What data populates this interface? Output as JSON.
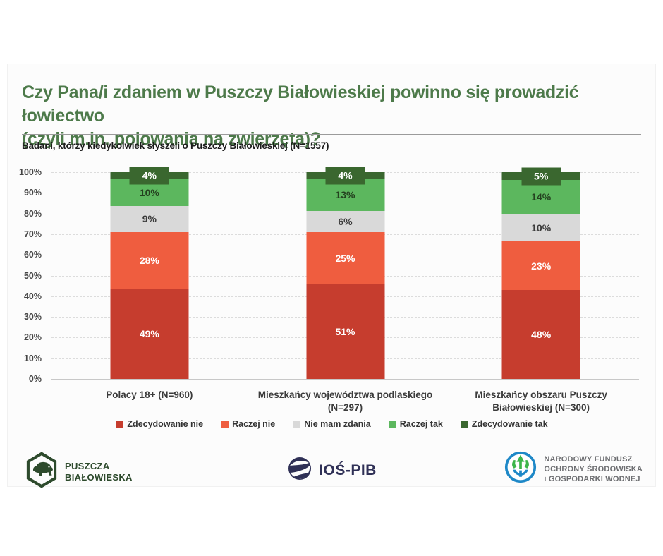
{
  "header": {
    "title_lines": [
      "Czy Pana/i zdaniem w Puszczy Białowieskiej powinno się prowadzić łowiectwo",
      "(czyli m.in. polowania na zwierzęta)?"
    ],
    "subtitle": "Badani, którzy kiedykolwiek słyszeli o Puszczy Białowieskiej (N=1557)",
    "title_color": "#4d7a4a"
  },
  "chart_data": {
    "type": "bar",
    "stacked": true,
    "unit": "%",
    "title": "Czy Pana/i zdaniem w Puszczy Białowieskiej powinno się prowadzić łowiectwo (czyli m.in. polowania na zwierzęta)?",
    "subtitle": "Badani, którzy kiedykolwiek słyszeli o Puszczy Białowieskiej (N=1557)",
    "categories": [
      "Polacy 18+ (N=960)",
      "Mieszkańcy województwa podlaskiego (N=297)",
      "Mieszkańcy obszaru Puszczy Białowieskiej (N=300)"
    ],
    "series": [
      {
        "name": "Zdecydowanie nie",
        "color": "#c63d2e",
        "label_color": "#ffffff",
        "values": [
          49,
          51,
          48
        ]
      },
      {
        "name": "Raczej nie",
        "color": "#ef5d3f",
        "label_color": "#ffffff",
        "values": [
          28,
          25,
          23
        ]
      },
      {
        "name": "Nie mam zdania",
        "color": "#d9d9d9",
        "label_color": "#3a3a3a",
        "values": [
          9,
          6,
          10
        ]
      },
      {
        "name": "Raczej tak",
        "color": "#5cb75e",
        "label_color": "#24411f",
        "values": [
          10,
          13,
          14
        ]
      },
      {
        "name": "Zdecydowanie tak",
        "color": "#3a672f",
        "label_color": "#ffffff",
        "values": [
          4,
          4,
          5
        ]
      }
    ],
    "ylim": [
      0,
      100
    ],
    "yticks": [
      "0%",
      "10%",
      "20%",
      "30%",
      "40%",
      "50%",
      "60%",
      "70%",
      "80%",
      "90%",
      "100%"
    ],
    "grid": "dashed-horizontal",
    "legend_position": "bottom"
  },
  "footer": {
    "left_logo": {
      "icon": "bison-hexagon-icon",
      "lines": [
        "PUSZCZA",
        "BIAŁOWIESKA"
      ],
      "color": "#2d4a2c"
    },
    "center_logo": {
      "icon": "swirl-globe-icon",
      "text": "IOŚ-PIB",
      "color": "#2f3056"
    },
    "right_logo": {
      "icon": "tree-circle-icon",
      "lines": [
        "NARODOWY FUNDUSZ",
        "OCHRONY ŚRODOWISKA",
        "i GOSPODARKI WODNEJ"
      ],
      "ring_color": "#1e88c7",
      "tree_color": "#3cb54a",
      "text_color": "#6d6e71"
    }
  }
}
